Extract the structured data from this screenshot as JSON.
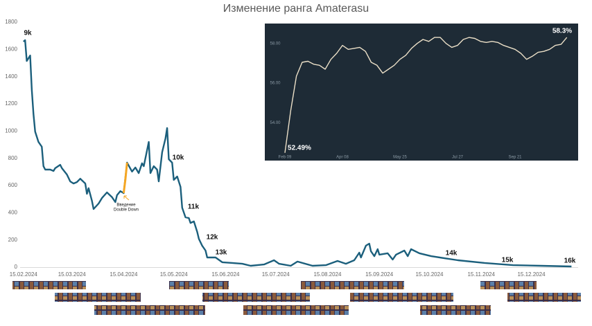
{
  "chart_data": [
    {
      "type": "line",
      "title": "Изменение ранга Amaterasu",
      "x": [
        "2024-02-15",
        "2024-02-16",
        "2024-02-17",
        "2024-02-19",
        "2024-02-20",
        "2024-02-21",
        "2024-02-22",
        "2024-02-24",
        "2024-02-26",
        "2024-02-27",
        "2024-02-28",
        "2024-03-02",
        "2024-03-04",
        "2024-03-05",
        "2024-03-08",
        "2024-03-09",
        "2024-03-12",
        "2024-03-14",
        "2024-03-16",
        "2024-03-18",
        "2024-03-20",
        "2024-03-23",
        "2024-03-24",
        "2024-03-25",
        "2024-03-27",
        "2024-03-28",
        "2024-03-31",
        "2024-04-02",
        "2024-04-05",
        "2024-04-08",
        "2024-04-10",
        "2024-04-11",
        "2024-04-13",
        "2024-04-15",
        "2024-04-17",
        "2024-04-20",
        "2024-04-22",
        "2024-04-24",
        "2024-04-26",
        "2024-04-27",
        "2024-04-30",
        "2024-05-01",
        "2024-05-03",
        "2024-05-05",
        "2024-05-06",
        "2024-05-08",
        "2024-05-10",
        "2024-05-11",
        "2024-05-12",
        "2024-05-14",
        "2024-05-15",
        "2024-05-17",
        "2024-05-19",
        "2024-05-20",
        "2024-05-22",
        "2024-05-24",
        "2024-05-25",
        "2024-05-27",
        "2024-05-29",
        "2024-05-30",
        "2024-06-01",
        "2024-06-03",
        "2024-06-04",
        "2024-06-09",
        "2024-06-13",
        "2024-06-19",
        "2024-06-25",
        "2024-06-30",
        "2024-07-08",
        "2024-07-14",
        "2024-07-17",
        "2024-07-24",
        "2024-07-28",
        "2024-08-06",
        "2024-08-14",
        "2024-08-21",
        "2024-08-26",
        "2024-08-31",
        "2024-09-03",
        "2024-09-04",
        "2024-09-07",
        "2024-09-09",
        "2024-09-10",
        "2024-09-12",
        "2024-09-14",
        "2024-09-15",
        "2024-09-20",
        "2024-09-23",
        "2024-09-25",
        "2024-09-30",
        "2024-10-02",
        "2024-10-04",
        "2024-10-09",
        "2024-10-16",
        "2024-11-01",
        "2024-11-17",
        "2024-12-04",
        "2024-12-21",
        "2025-01-08"
      ],
      "series": [
        {
          "color": "#1b5f7c",
          "values": [
            1657,
            1668,
            1515,
            1555,
            1300,
            1124,
            996,
            920,
            885,
            742,
            717,
            717,
            707,
            727,
            752,
            727,
            681,
            630,
            615,
            625,
            650,
            615,
            539,
            580,
            488,
            427,
            468,
            508,
            549,
            514,
            478,
            529,
            559,
            544,
            768,
            702,
            732,
            691,
            763,
            742,
            920,
            691,
            742,
            717,
            630,
            844,
            946,
            1022,
            793,
            768,
            641,
            666,
            590,
            437,
            366,
            361,
            325,
            336,
            259,
            208,
            157,
            122,
            71,
            71,
            36,
            31,
            25,
            10,
            20,
            51,
            25,
            10,
            41,
            10,
            15,
            46,
            25,
            51,
            107,
            71,
            158,
            173,
            117,
            81,
            132,
            92,
            102,
            56,
            92,
            122,
            81,
            132,
            102,
            81,
            51,
            31,
            15,
            10,
            5
          ]
        },
        {
          "color": "#f5a623",
          "x": [
            "2024-04-15",
            "2024-04-16",
            "2024-04-17"
          ],
          "values": [
            544,
            641,
            768
          ]
        }
      ],
      "xlim": [
        "2024-02-13",
        "2025-01-12"
      ],
      "xticks": [
        {
          "value": "2024-02-15",
          "label": "15.02.2024"
        },
        {
          "value": "2024-03-15",
          "label": "15.03.2024"
        },
        {
          "value": "2024-04-15",
          "label": "15.04.2024"
        },
        {
          "value": "2024-05-15",
          "label": "15.05.2024"
        },
        {
          "value": "2024-06-15",
          "label": "15.06.2024"
        },
        {
          "value": "2024-07-15",
          "label": "15.07.2024"
        },
        {
          "value": "2024-08-15",
          "label": "15.08.2024"
        },
        {
          "value": "2024-09-15",
          "label": "15.09.2024"
        },
        {
          "value": "2024-10-15",
          "label": "15.10.2024"
        },
        {
          "value": "2024-11-15",
          "label": "15.11.2024"
        },
        {
          "value": "2024-12-15",
          "label": "15.12.2024"
        }
      ],
      "ylim": [
        0,
        1800
      ],
      "yticks": [
        0,
        200,
        400,
        600,
        800,
        1000,
        1200,
        1400,
        1600,
        1800
      ],
      "annotations": [
        "9k",
        "10k",
        "11k",
        "12k",
        "13k",
        "14k",
        "15k",
        "16k"
      ],
      "note_lines": [
        "Введение",
        "Double Down"
      ]
    },
    {
      "type": "line",
      "x": [
        "02-09",
        "02-15",
        "02-21",
        "02-27",
        "03-04",
        "03-10",
        "03-16",
        "03-22",
        "03-28",
        "04-03",
        "04-08",
        "04-13",
        "04-18",
        "04-23",
        "04-28",
        "05-03",
        "05-08",
        "05-13",
        "05-18",
        "05-21",
        "05-25",
        "05-31",
        "06-06",
        "06-12",
        "06-18",
        "06-24",
        "06-30",
        "07-06",
        "07-12",
        "07-18",
        "07-27",
        "08-01",
        "08-07",
        "08-12",
        "08-18",
        "08-23",
        "08-29",
        "09-04",
        "09-09",
        "09-15",
        "09-21",
        "09-27",
        "10-03",
        "10-09",
        "10-15",
        "10-21",
        "10-27",
        "11-02",
        "11-08",
        "11-14"
      ],
      "series": [
        {
          "color": "#ece0c8",
          "values": [
            52.49,
            54.6,
            56.35,
            57.05,
            57.1,
            56.95,
            56.9,
            56.7,
            57.2,
            57.5,
            57.9,
            57.7,
            57.75,
            57.8,
            57.6,
            57.05,
            56.9,
            56.5,
            56.7,
            56.9,
            57.2,
            57.4,
            57.75,
            58.0,
            58.2,
            58.1,
            58.3,
            58.3,
            58.0,
            57.8,
            57.9,
            58.2,
            58.3,
            58.25,
            58.1,
            58.05,
            58.1,
            58.05,
            57.9,
            57.8,
            57.7,
            57.5,
            57.2,
            57.35,
            57.55,
            57.6,
            57.7,
            57.9,
            57.95,
            58.3
          ]
        }
      ],
      "xticks": [
        {
          "value": "02-09",
          "label": "Feb 09"
        },
        {
          "value": "04-08",
          "label": "Apr 08"
        },
        {
          "value": "05-25",
          "label": "May 25"
        },
        {
          "value": "07-27",
          "label": "Jul 27"
        },
        {
          "value": "09-21",
          "label": "Sep 21"
        }
      ],
      "ylim": [
        52.1,
        59.0
      ],
      "yticks": [
        {
          "value": 54,
          "label": "54.00"
        },
        {
          "value": 56,
          "label": "56.00"
        },
        {
          "value": 58,
          "label": "58.00"
        }
      ],
      "start_label": "52.49%",
      "end_label": "58.3%"
    }
  ]
}
